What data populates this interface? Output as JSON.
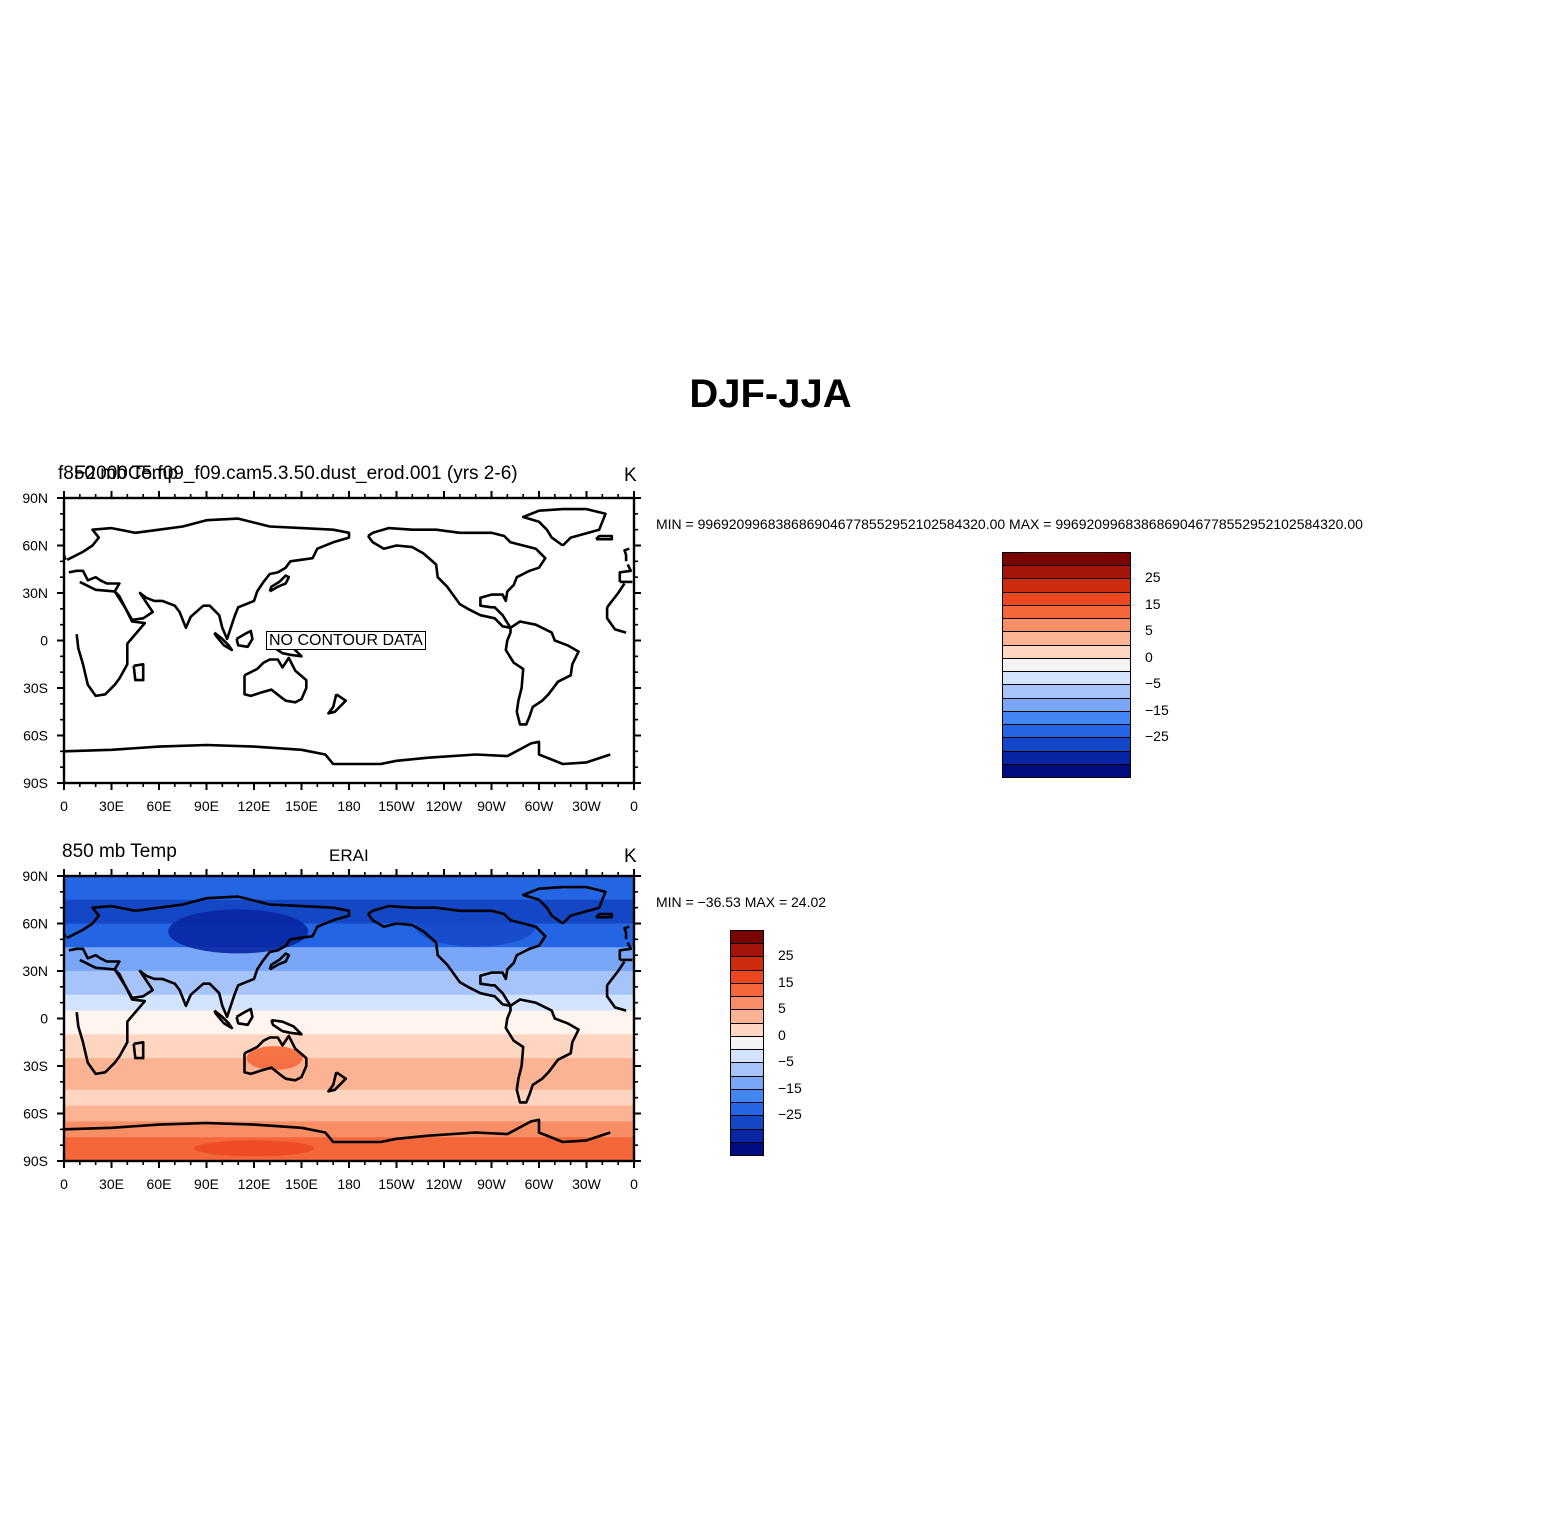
{
  "title": "DJF-JJA",
  "colors": {
    "levels": [
      "#000c80",
      "#0826a3",
      "#1447c6",
      "#2465e3",
      "#4286f4",
      "#7aa6f7",
      "#a7c4fa",
      "#d3e3fd",
      "#fff4ee",
      "#fdd5c1",
      "#fbb393",
      "#f98d65",
      "#f5673a",
      "#eb461f",
      "#cd2c0f",
      "#a3140a",
      "#7a0303"
    ],
    "cell_colors": [
      "#000c80",
      "#0826a3",
      "#1447c6",
      "#2465e3",
      "#4286f4",
      "#7aa6f7",
      "#a7c4fa",
      "#d3e3fd",
      "#f4f4f4",
      "#fdd5c1",
      "#fbb393",
      "#f98d65",
      "#f5673a",
      "#eb461f",
      "#cd2c0f",
      "#a3140a",
      "#7a0303"
    ]
  },
  "axes": {
    "lon_ticks": [
      "0",
      "30E",
      "60E",
      "90E",
      "120E",
      "150E",
      "180",
      "150W",
      "120W",
      "90W",
      "60W",
      "30W",
      "0"
    ],
    "lat_ticks": [
      "90N",
      "60N",
      "30N",
      "0",
      "30S",
      "60S",
      "90S"
    ]
  },
  "panels": [
    {
      "left_title": "f850 mb Temp",
      "center_title": "F2000C5.f09_f09.cam5.3.50.dust_erod.001 (yrs 2-6)",
      "units": "K",
      "stats": "MIN = 9969209968386869046778552952102584320.00  MAX = 9969209968386869046778552952102584320.00",
      "no_data_label": "NO CONTOUR DATA",
      "colorbar_labels": [
        "25",
        "15",
        "5",
        "0",
        "−5",
        "−15",
        "−25"
      ]
    },
    {
      "left_title": "850 mb Temp",
      "center_title": "ERAI",
      "units": "K",
      "stats": "MIN = −36.53  MAX =   24.02",
      "colorbar_labels": [
        "25",
        "15",
        "5",
        "0",
        "−5",
        "−15",
        "−25"
      ]
    }
  ],
  "chart_data": [
    {
      "type": "heatmap",
      "title": "f850 mb Temp",
      "subtitle": "F2000C5.f09_f09.cam5.3.50.dust_erod.001 (yrs 2-6)",
      "units": "K",
      "x": {
        "range": [
          0,
          360
        ],
        "ticks": [
          "0",
          "30E",
          "60E",
          "90E",
          "120E",
          "150E",
          "180",
          "150W",
          "120W",
          "90W",
          "60W",
          "30W",
          "0"
        ]
      },
      "y": {
        "range": [
          -90,
          90
        ],
        "ticks": [
          "90N",
          "60N",
          "30N",
          "0",
          "30S",
          "60S",
          "90S"
        ]
      },
      "min": 9.969209968386869e+36,
      "max": 9.969209968386869e+36,
      "levels": [
        -30,
        -25,
        -20,
        -15,
        -10,
        -5,
        -2.5,
        0,
        2.5,
        5,
        10,
        15,
        20,
        25,
        30
      ],
      "values": []
    },
    {
      "type": "heatmap",
      "title": "850 mb Temp",
      "subtitle": "ERAI",
      "units": "K",
      "x": {
        "range": [
          0,
          360
        ],
        "ticks": [
          "0",
          "30E",
          "60E",
          "90E",
          "120E",
          "150E",
          "180",
          "150W",
          "120W",
          "90W",
          "60W",
          "30W",
          "0"
        ]
      },
      "y": {
        "range": [
          -90,
          90
        ],
        "ticks": [
          "90N",
          "60N",
          "30N",
          "0",
          "30S",
          "60S",
          "90S"
        ]
      },
      "min": -36.53,
      "max": 24.02,
      "zonal_bands": [
        {
          "lat": [
            75,
            90
          ],
          "level": 3
        },
        {
          "lat": [
            60,
            75
          ],
          "level": 2
        },
        {
          "lat": [
            45,
            60
          ],
          "level": 3
        },
        {
          "lat": [
            30,
            45
          ],
          "level": 5
        },
        {
          "lat": [
            15,
            30
          ],
          "level": 6
        },
        {
          "lat": [
            5,
            15
          ],
          "level": 7
        },
        {
          "lat": [
            -10,
            5
          ],
          "level": 8
        },
        {
          "lat": [
            -25,
            -10
          ],
          "level": 9
        },
        {
          "lat": [
            -45,
            -25
          ],
          "level": 10
        },
        {
          "lat": [
            -55,
            -45
          ],
          "level": 9
        },
        {
          "lat": [
            -65,
            -55
          ],
          "level": 10
        },
        {
          "lat": [
            -75,
            -65
          ],
          "level": 11
        },
        {
          "lat": [
            -90,
            -75
          ],
          "level": 12
        }
      ]
    }
  ]
}
